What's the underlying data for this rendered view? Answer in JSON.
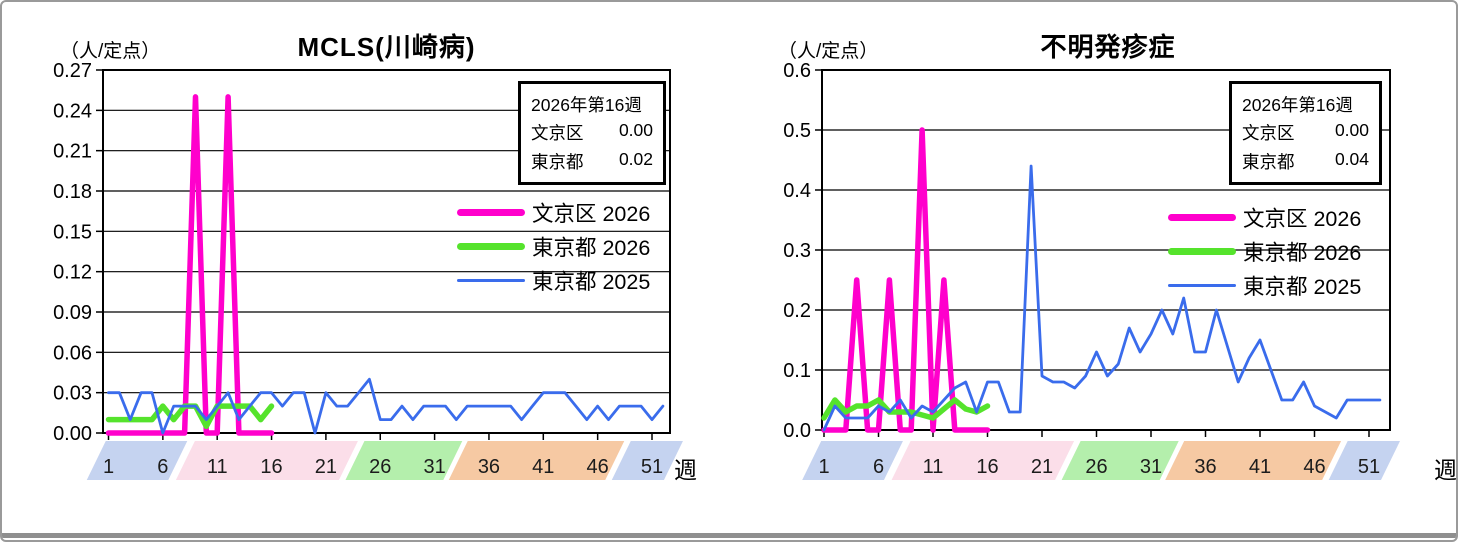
{
  "charts": [
    {
      "title": "MCLS(川崎病)",
      "unit_label": "（人/定点）",
      "x_axis_label": "週",
      "info_box": {
        "title": "2026年第16週",
        "rows": [
          {
            "label": "文京区",
            "value": "0.00"
          },
          {
            "label": "東京都",
            "value": "0.02"
          }
        ]
      },
      "legend": [
        {
          "label": "文京区 2026",
          "color": "#FF00CC",
          "thickness": 7
        },
        {
          "label": "東京都 2026",
          "color": "#55E32C",
          "thickness": 7
        },
        {
          "label": "東京都 2025",
          "color": "#3A6CEC",
          "thickness": 3
        }
      ],
      "chart_data": {
        "type": "line",
        "xlabel": "週",
        "x_unit": "week 1-52",
        "x_ticks": [
          1,
          6,
          11,
          16,
          21,
          26,
          31,
          36,
          41,
          46,
          51
        ],
        "ylim": [
          0,
          0.27
        ],
        "y_ticks": [
          "0.27",
          "0.24",
          "0.21",
          "0.18",
          "0.15",
          "0.12",
          "0.09",
          "0.06",
          "0.03",
          "0.00"
        ],
        "grid": true,
        "legend_position": "upper right inside",
        "series": [
          {
            "name": "文京区 2026",
            "color": "#FF00CC",
            "width": 5.5,
            "values": [
              0,
              0,
              0,
              0,
              0,
              0,
              0,
              0,
              0.25,
              0,
              0,
              0.25,
              0,
              0,
              0,
              0
            ]
          },
          {
            "name": "東京都 2026",
            "color": "#55E32C",
            "width": 5.5,
            "values": [
              0.01,
              0.01,
              0.01,
              0.01,
              0.01,
              0.02,
              0.01,
              0.02,
              0.02,
              0.005,
              0.02,
              0.02,
              0.02,
              0.02,
              0.01,
              0.02
            ]
          },
          {
            "name": "東京都 2025",
            "color": "#3A6CEC",
            "width": 2.8,
            "values": [
              0.03,
              0.03,
              0.01,
              0.03,
              0.03,
              0,
              0.02,
              0.02,
              0.02,
              0.01,
              0.02,
              0.03,
              0.01,
              0.02,
              0.03,
              0.03,
              0.02,
              0.03,
              0.03,
              0,
              0.03,
              0.02,
              0.02,
              0.03,
              0.04,
              0.01,
              0.01,
              0.02,
              0.01,
              0.02,
              0.02,
              0.02,
              0.01,
              0.02,
              0.02,
              0.02,
              0.02,
              0.02,
              0.01,
              0.02,
              0.03,
              0.03,
              0.03,
              0.02,
              0.01,
              0.02,
              0.01,
              0.02,
              0.02,
              0.02,
              0.01,
              0.02
            ]
          }
        ],
        "season_bands": [
          {
            "start_week": -1.0,
            "end_week": 6.5,
            "color": "#C5D3F0"
          },
          {
            "start_week": 7.2,
            "end_week": 22.2,
            "color": "#FBDEE9"
          },
          {
            "start_week": 22.8,
            "end_week": 31.8,
            "color": "#B4EFAC"
          },
          {
            "start_week": 32.3,
            "end_week": 46.7,
            "color": "#F6C9A3"
          },
          {
            "start_week": 47.3,
            "end_week": 52.1,
            "color": "#C5D3F0"
          }
        ]
      }
    },
    {
      "title": "不明発疹症",
      "unit_label": "（人/定点）",
      "x_axis_label": "週",
      "info_box": {
        "title": "2026年第16週",
        "rows": [
          {
            "label": "文京区",
            "value": "0.00"
          },
          {
            "label": "東京都",
            "value": "0.04"
          }
        ]
      },
      "legend": [
        {
          "label": "文京区 2026",
          "color": "#FF00CC",
          "thickness": 7
        },
        {
          "label": "東京都 2026",
          "color": "#55E32C",
          "thickness": 7
        },
        {
          "label": "東京都 2025",
          "color": "#3A6CEC",
          "thickness": 3
        }
      ],
      "chart_data": {
        "type": "line",
        "xlabel": "週",
        "x_unit": "week 1-52",
        "x_ticks": [
          1,
          6,
          11,
          16,
          21,
          26,
          31,
          36,
          41,
          46,
          51
        ],
        "ylim": [
          0,
          0.6
        ],
        "y_ticks": [
          "0.6",
          "0.5",
          "0.4",
          "0.3",
          "0.2",
          "0.1",
          "0.0"
        ],
        "grid": true,
        "legend_position": "upper right inside",
        "series": [
          {
            "name": "文京区 2026",
            "color": "#FF00CC",
            "width": 5.5,
            "values": [
              0,
              0,
              0,
              0.25,
              0,
              0,
              0.25,
              0,
              0,
              0.5,
              0,
              0.25,
              0,
              0,
              0,
              0
            ]
          },
          {
            "name": "東京都 2026",
            "color": "#55E32C",
            "width": 5.5,
            "values": [
              0.02,
              0.05,
              0.03,
              0.04,
              0.04,
              0.05,
              0.03,
              0.03,
              0.03,
              0.025,
              0.02,
              0.035,
              0.05,
              0.035,
              0.03,
              0.04
            ]
          },
          {
            "name": "東京都 2025",
            "color": "#3A6CEC",
            "width": 2.8,
            "values": [
              0,
              0.04,
              0.02,
              0.02,
              0.02,
              0.04,
              0.03,
              0.05,
              0.02,
              0.04,
              0.03,
              0.05,
              0.07,
              0.08,
              0.03,
              0.08,
              0.08,
              0.03,
              0.03,
              0.44,
              0.09,
              0.08,
              0.08,
              0.07,
              0.09,
              0.13,
              0.09,
              0.11,
              0.17,
              0.13,
              0.16,
              0.2,
              0.16,
              0.22,
              0.13,
              0.13,
              0.2,
              0.14,
              0.08,
              0.12,
              0.15,
              0.1,
              0.05,
              0.05,
              0.08,
              0.04,
              0.03,
              0.02,
              0.05,
              0.05,
              0.05,
              0.05
            ]
          }
        ],
        "season_bands": [
          {
            "start_week": -1.0,
            "end_week": 6.5,
            "color": "#C5D3F0"
          },
          {
            "start_week": 7.2,
            "end_week": 22.2,
            "color": "#FBDEE9"
          },
          {
            "start_week": 22.8,
            "end_week": 31.8,
            "color": "#B4EFAC"
          },
          {
            "start_week": 32.3,
            "end_week": 46.7,
            "color": "#F6C9A3"
          },
          {
            "start_week": 47.3,
            "end_week": 52.1,
            "color": "#C5D3F0"
          }
        ]
      }
    }
  ]
}
